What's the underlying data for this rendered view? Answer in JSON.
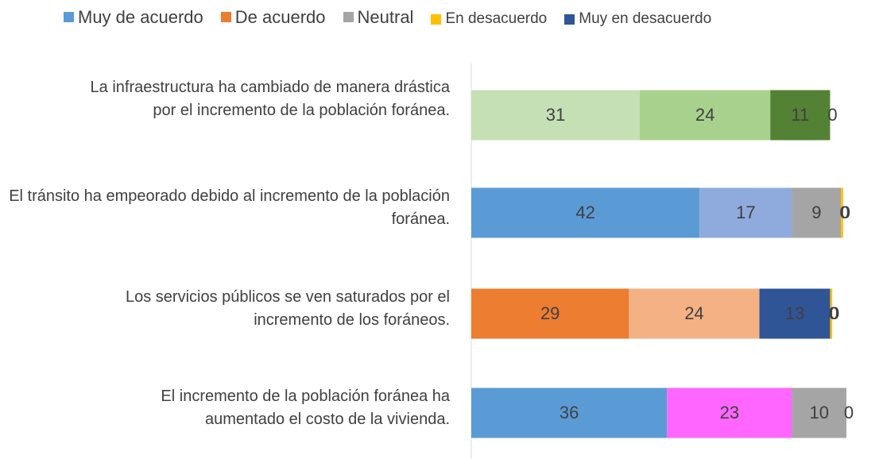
{
  "chart_data": {
    "type": "stacked-barh",
    "categories": [
      "La infraestructura ha cambiado de manera drástica por el incremento de la población foránea.",
      "El tránsito ha empeorado debido al incremento de la población foránea.",
      "Los servicios públicos se ven saturados por el incremento de los foráneos.",
      "El incremento de la población foránea ha aumentado el costo de la vivienda."
    ],
    "series": [
      {
        "name": "Muy de acuerdo",
        "color": "#5b9bd5",
        "colors": [
          "#c5e0b4",
          "#5b9bd5",
          "#ed7d31",
          "#5b9bd5"
        ],
        "values": [
          31,
          42,
          29,
          36
        ]
      },
      {
        "name": "De acuerdo",
        "color": "#ed7d31",
        "colors": [
          "#a9d18e",
          "#8faadc",
          "#f4b183",
          "#ff66ff"
        ],
        "values": [
          24,
          17,
          24,
          23
        ]
      },
      {
        "name": "Neutral",
        "color": "#a5a5a5",
        "colors": [
          "#548235",
          "#a5a5a5",
          "#2f5597",
          "#a5a5a5"
        ],
        "values": [
          11,
          9,
          13,
          10
        ]
      },
      {
        "name": "En desacuerdo",
        "color": "#ffc000",
        "colors": [
          "#ffc000",
          "#ffc000",
          "#ffc000",
          "#ffc000"
        ],
        "values": [
          0,
          0.4,
          0.4,
          0
        ],
        "value_labels": [
          "0",
          "0",
          "0",
          "0"
        ]
      },
      {
        "name": "Muy en desacuerdo",
        "color": "#2f5597",
        "colors": [
          "#2f5597",
          "#2f5597",
          "#2f5597",
          "#2f5597"
        ],
        "values": [
          null,
          0,
          0,
          null
        ]
      }
    ]
  }
}
